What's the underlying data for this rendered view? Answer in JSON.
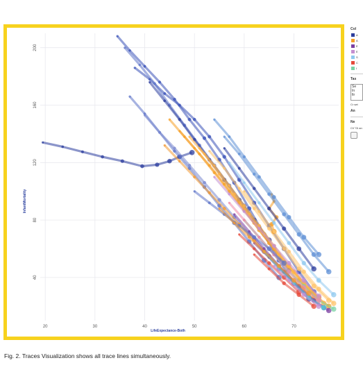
{
  "caption": "Fig. 2. Traces Visualization shows all trace lines simultaneously.",
  "chart_data": {
    "type": "line",
    "xlabel": "LifeExpectance-Both",
    "ylabel": "InfantMortality",
    "xlim": [
      19,
      79
    ],
    "ylim": [
      10,
      210
    ],
    "xticks": [
      20,
      30,
      40,
      50,
      60,
      70
    ],
    "yticks": [
      40,
      80,
      120,
      160,
      200
    ],
    "grid": true,
    "series": [
      {
        "color": "#2c3e9e",
        "points": [
          [
            19.5,
            134
          ],
          [
            23.5,
            131
          ],
          [
            27.5,
            127.5
          ],
          [
            31.5,
            124
          ],
          [
            35.5,
            121
          ],
          [
            39.5,
            117.5
          ],
          [
            42.5,
            118.5
          ],
          [
            45,
            121
          ],
          [
            47,
            124
          ],
          [
            49.5,
            127
          ]
        ]
      },
      {
        "color": "#3a52b8",
        "points": [
          [
            34.5,
            208
          ],
          [
            37,
            198
          ],
          [
            40,
            187
          ],
          [
            43,
            176
          ],
          [
            46,
            164
          ],
          [
            49,
            150
          ],
          [
            52,
            137
          ],
          [
            55,
            122
          ],
          [
            58,
            106
          ],
          [
            61,
            88
          ],
          [
            64,
            70
          ],
          [
            67,
            52
          ],
          [
            70,
            36
          ],
          [
            73,
            25
          ]
        ]
      },
      {
        "color": "#3a52b8",
        "points": [
          [
            38,
            186
          ],
          [
            41,
            178
          ],
          [
            44,
            168
          ],
          [
            47,
            160
          ],
          [
            50,
            150
          ],
          [
            53,
            138
          ],
          [
            56,
            124
          ],
          [
            59,
            108
          ],
          [
            62,
            92
          ],
          [
            65,
            76
          ],
          [
            68,
            60
          ],
          [
            71,
            44
          ],
          [
            74,
            30
          ]
        ]
      },
      {
        "color": "#5e74c8",
        "points": [
          [
            36,
            200
          ],
          [
            39,
            188
          ],
          [
            42,
            175
          ],
          [
            45,
            160
          ],
          [
            48,
            146
          ],
          [
            51,
            132
          ],
          [
            54,
            118
          ],
          [
            57,
            104
          ],
          [
            60,
            90
          ],
          [
            63,
            75
          ],
          [
            66,
            60
          ],
          [
            69,
            45
          ]
        ]
      },
      {
        "color": "#5e74c8",
        "points": [
          [
            37,
            166
          ],
          [
            40,
            154
          ],
          [
            43,
            141
          ],
          [
            46,
            128
          ],
          [
            49,
            116
          ],
          [
            52,
            103
          ],
          [
            55,
            90
          ],
          [
            58,
            78
          ],
          [
            61,
            65
          ],
          [
            64,
            52
          ],
          [
            67,
            40
          ]
        ]
      },
      {
        "color": "#2c3e9e",
        "points": [
          [
            41,
            176
          ],
          [
            44,
            163
          ],
          [
            47,
            150
          ],
          [
            50,
            136
          ],
          [
            53,
            122
          ],
          [
            56,
            108
          ],
          [
            59,
            94
          ],
          [
            62,
            80
          ],
          [
            65,
            66
          ]
        ]
      },
      {
        "color": "#7a88d0",
        "points": [
          [
            40,
            153
          ],
          [
            43,
            141
          ],
          [
            46,
            130
          ],
          [
            49,
            118
          ],
          [
            52,
            106
          ],
          [
            55,
            94
          ],
          [
            58,
            82
          ],
          [
            61,
            70
          ],
          [
            64,
            58
          ],
          [
            67,
            46
          ],
          [
            70,
            36
          ]
        ]
      },
      {
        "color": "#f5a028",
        "points": [
          [
            45,
            150
          ],
          [
            48,
            138
          ],
          [
            51,
            126
          ],
          [
            54,
            113
          ],
          [
            57,
            100
          ],
          [
            60,
            87
          ],
          [
            63,
            73
          ],
          [
            66,
            60
          ],
          [
            69,
            48
          ],
          [
            72,
            36
          ],
          [
            75,
            26
          ]
        ]
      },
      {
        "color": "#f5a028",
        "points": [
          [
            47,
            142
          ],
          [
            50,
            130
          ],
          [
            53,
            118
          ],
          [
            56,
            105
          ],
          [
            59,
            92
          ],
          [
            62,
            78
          ],
          [
            65,
            64
          ],
          [
            68,
            50
          ],
          [
            71,
            38
          ],
          [
            74,
            28
          ],
          [
            77,
            20
          ]
        ]
      },
      {
        "color": "#ffb347",
        "points": [
          [
            49,
            138
          ],
          [
            52,
            126
          ],
          [
            55,
            112
          ],
          [
            58,
            98
          ],
          [
            61,
            84
          ],
          [
            64,
            70
          ],
          [
            67,
            56
          ],
          [
            70,
            44
          ],
          [
            73,
            32
          ],
          [
            76,
            22
          ]
        ]
      },
      {
        "color": "#ffb347",
        "points": [
          [
            51,
            130
          ],
          [
            54,
            118
          ],
          [
            57,
            104
          ],
          [
            60,
            90
          ],
          [
            63,
            76
          ],
          [
            66,
            62
          ],
          [
            69,
            48
          ],
          [
            72,
            36
          ],
          [
            75,
            26
          ]
        ]
      },
      {
        "color": "#f29a35",
        "points": [
          [
            44,
            132
          ],
          [
            47,
            121
          ],
          [
            50,
            110
          ],
          [
            53,
            99
          ],
          [
            56,
            88
          ],
          [
            59,
            77
          ],
          [
            62,
            66
          ],
          [
            65,
            55
          ],
          [
            68,
            44
          ],
          [
            71,
            34
          ],
          [
            74,
            25
          ]
        ]
      },
      {
        "color": "#ffc46b",
        "points": [
          [
            53,
            128
          ],
          [
            56,
            116
          ],
          [
            59,
            102
          ],
          [
            62,
            88
          ],
          [
            65,
            74
          ],
          [
            68,
            60
          ],
          [
            71,
            46
          ],
          [
            74,
            34
          ],
          [
            77,
            24
          ]
        ]
      },
      {
        "color": "#f5a028",
        "points": [
          [
            65.5,
            98
          ],
          [
            66,
            93
          ],
          [
            65,
            88
          ],
          [
            66.5,
            82
          ],
          [
            65.5,
            77
          ],
          [
            66,
            72
          ]
        ]
      },
      {
        "color": "#5d8fd6",
        "points": [
          [
            54,
            150
          ],
          [
            57,
            138
          ],
          [
            60,
            124
          ],
          [
            63,
            110
          ],
          [
            66,
            96
          ],
          [
            69,
            82
          ],
          [
            72,
            68
          ],
          [
            75,
            56
          ]
        ]
      },
      {
        "color": "#5d8fd6",
        "points": [
          [
            56,
            138
          ],
          [
            59,
            126
          ],
          [
            62,
            112
          ],
          [
            65,
            98
          ],
          [
            68,
            84
          ],
          [
            71,
            70
          ],
          [
            74,
            56
          ],
          [
            77,
            44
          ]
        ]
      },
      {
        "color": "#8fc9ef",
        "points": [
          [
            57,
            120
          ],
          [
            60,
            106
          ],
          [
            63,
            92
          ],
          [
            66,
            78
          ],
          [
            69,
            64
          ],
          [
            72,
            50
          ],
          [
            75,
            38
          ],
          [
            78,
            28
          ]
        ]
      },
      {
        "color": "#c58fd0",
        "points": [
          [
            54,
            110
          ],
          [
            57,
            98
          ],
          [
            60,
            86
          ],
          [
            63,
            74
          ],
          [
            66,
            62
          ],
          [
            69,
            50
          ],
          [
            72,
            38
          ],
          [
            75,
            27
          ]
        ]
      },
      {
        "color": "#7b3fa2",
        "points": [
          [
            58,
            84
          ],
          [
            61,
            72
          ],
          [
            64,
            60
          ],
          [
            67,
            48
          ],
          [
            70,
            36
          ],
          [
            73,
            26
          ],
          [
            76,
            19
          ]
        ]
      },
      {
        "color": "#7b3fa2",
        "points": [
          [
            62,
            64
          ],
          [
            65,
            54
          ],
          [
            68,
            44
          ],
          [
            71,
            34
          ],
          [
            74,
            24
          ],
          [
            77,
            17
          ]
        ]
      },
      {
        "color": "#7bd3a5",
        "points": [
          [
            60,
            80
          ],
          [
            63,
            68
          ],
          [
            66,
            56
          ],
          [
            69,
            44
          ],
          [
            72,
            34
          ],
          [
            75,
            24
          ],
          [
            78,
            18
          ]
        ]
      },
      {
        "color": "#e64a3a",
        "points": [
          [
            59,
            70
          ],
          [
            62,
            60
          ],
          [
            65,
            50
          ],
          [
            68,
            40
          ],
          [
            71,
            30
          ]
        ]
      },
      {
        "color": "#e64a3a",
        "points": [
          [
            62,
            56
          ],
          [
            65,
            46
          ],
          [
            68,
            36
          ],
          [
            71,
            28
          ],
          [
            74,
            20
          ]
        ]
      },
      {
        "color": "#f08aa9",
        "points": [
          [
            57,
            92
          ],
          [
            60,
            80
          ],
          [
            63,
            68
          ],
          [
            66,
            56
          ],
          [
            69,
            44
          ],
          [
            72,
            33
          ],
          [
            75,
            24
          ]
        ]
      },
      {
        "color": "#4fd1d9",
        "points": [
          [
            64,
            58
          ],
          [
            67,
            47
          ],
          [
            70,
            36
          ],
          [
            73,
            26
          ],
          [
            76,
            19
          ]
        ]
      },
      {
        "color": "#2c3e9e",
        "points": [
          [
            56,
            130
          ],
          [
            59,
            116
          ],
          [
            62,
            102
          ],
          [
            65,
            88
          ],
          [
            68,
            74
          ],
          [
            71,
            60
          ],
          [
            74,
            46
          ]
        ]
      },
      {
        "color": "#5e74c8",
        "points": [
          [
            50,
            100
          ],
          [
            53,
            92
          ],
          [
            56,
            84
          ],
          [
            59,
            76
          ],
          [
            62,
            68
          ],
          [
            65,
            60
          ],
          [
            68,
            50
          ]
        ]
      },
      {
        "color": "#f29a35",
        "points": [
          [
            55,
            88
          ],
          [
            58,
            78
          ],
          [
            61,
            68
          ],
          [
            64,
            58
          ],
          [
            67,
            48
          ],
          [
            70,
            38
          ],
          [
            73,
            29
          ]
        ]
      },
      {
        "color": "#ffc46b",
        "points": [
          [
            60,
            100
          ],
          [
            63,
            86
          ],
          [
            66,
            72
          ],
          [
            69,
            58
          ],
          [
            72,
            44
          ],
          [
            75,
            32
          ],
          [
            78,
            22
          ]
        ]
      },
      {
        "color": "#c58fd0",
        "points": [
          [
            66,
            48
          ],
          [
            69,
            38
          ],
          [
            72,
            28
          ],
          [
            75,
            20
          ]
        ]
      }
    ]
  },
  "sidebar": {
    "color_title": "Col",
    "swatches": [
      "#2c3e9e",
      "#f5a028",
      "#7b3fa2",
      "#c58fd0",
      "#8fc9ef",
      "#e64a3a",
      "#7bd3a5"
    ],
    "swatch_labels": [
      "A",
      "A",
      "E",
      "E",
      "S",
      "C",
      "I"
    ],
    "task_title": "Tas",
    "task_box_lines": [
      "Se",
      "In",
      "fir"
    ],
    "task_text": "Cr set",
    "task_answer": "An",
    "next_title": "Ne",
    "next_text": "Cli \"Gi an"
  }
}
